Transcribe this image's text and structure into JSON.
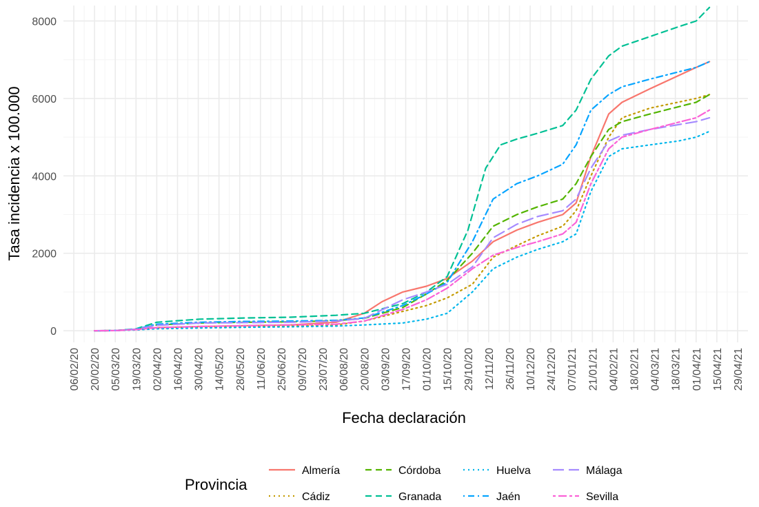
{
  "chart_data": {
    "type": "line",
    "xlabel": "Fecha declaración",
    "ylabel": "Tasa incidencia x 100.000",
    "ylim": [
      -300,
      8400
    ],
    "yticks": [
      0,
      2000,
      4000,
      6000,
      8000
    ],
    "x_range": [
      "2020-01-30",
      "2021-05-06"
    ],
    "x_ticks": [
      "2020-02-06",
      "2020-02-20",
      "2020-03-05",
      "2020-03-19",
      "2020-04-02",
      "2020-04-16",
      "2020-04-30",
      "2020-05-14",
      "2020-05-28",
      "2020-06-11",
      "2020-06-25",
      "2020-07-09",
      "2020-07-23",
      "2020-08-06",
      "2020-08-20",
      "2020-09-03",
      "2020-09-17",
      "2020-10-01",
      "2020-10-15",
      "2020-10-29",
      "2020-11-12",
      "2020-11-26",
      "2020-12-10",
      "2020-12-24",
      "2021-01-07",
      "2021-01-21",
      "2021-02-04",
      "2021-02-18",
      "2021-03-04",
      "2021-03-18",
      "2021-04-01",
      "2021-04-15",
      "2021-04-29"
    ],
    "x_tick_labels": [
      "06/02/20",
      "20/02/20",
      "05/03/20",
      "19/03/20",
      "02/04/20",
      "16/04/20",
      "30/04/20",
      "14/05/20",
      "28/05/20",
      "11/06/20",
      "25/06/20",
      "09/07/20",
      "23/07/20",
      "06/08/20",
      "20/08/20",
      "03/09/20",
      "17/09/20",
      "01/10/20",
      "15/10/20",
      "29/10/20",
      "12/11/20",
      "26/11/20",
      "10/12/20",
      "24/12/20",
      "07/01/21",
      "21/01/21",
      "04/02/21",
      "18/02/21",
      "04/03/21",
      "18/03/21",
      "01/04/21",
      "15/04/21",
      "29/04/21"
    ],
    "grid": true,
    "legend": {
      "position": "bottom",
      "title": "Provincia"
    },
    "series": [
      {
        "name": "Almería",
        "color": "#F8766D",
        "dash": "solid",
        "x": [
          "2020-02-20",
          "2020-03-05",
          "2020-03-19",
          "2020-04-02",
          "2020-05-01",
          "2020-06-01",
          "2020-07-01",
          "2020-08-01",
          "2020-08-20",
          "2020-09-01",
          "2020-09-15",
          "2020-10-01",
          "2020-10-15",
          "2020-11-01",
          "2020-11-15",
          "2020-12-01",
          "2020-12-15",
          "2021-01-01",
          "2021-01-10",
          "2021-01-20",
          "2021-02-01",
          "2021-02-10",
          "2021-03-01",
          "2021-04-01",
          "2021-04-10"
        ],
        "y": [
          0,
          5,
          40,
          80,
          110,
          130,
          150,
          220,
          450,
          750,
          1000,
          1150,
          1350,
          1800,
          2300,
          2600,
          2800,
          3000,
          3300,
          4500,
          5600,
          5900,
          6250,
          6800,
          6950
        ]
      },
      {
        "name": "Cádiz",
        "color": "#C49A00",
        "dash": "dotted",
        "x": [
          "2020-02-20",
          "2020-03-05",
          "2020-03-19",
          "2020-04-02",
          "2020-05-01",
          "2020-06-01",
          "2020-07-01",
          "2020-08-01",
          "2020-08-20",
          "2020-09-15",
          "2020-10-01",
          "2020-10-15",
          "2020-11-01",
          "2020-11-15",
          "2020-12-01",
          "2020-12-15",
          "2021-01-01",
          "2021-01-10",
          "2021-01-20",
          "2021-02-01",
          "2021-02-10",
          "2021-03-01",
          "2021-04-01",
          "2021-04-10"
        ],
        "y": [
          0,
          5,
          30,
          60,
          80,
          100,
          120,
          150,
          250,
          500,
          650,
          850,
          1200,
          1900,
          2200,
          2450,
          2700,
          3100,
          4000,
          5000,
          5500,
          5750,
          6000,
          6100
        ]
      },
      {
        "name": "Córdoba",
        "color": "#53B400",
        "dash": "dashed",
        "x": [
          "2020-02-20",
          "2020-03-05",
          "2020-03-19",
          "2020-04-02",
          "2020-05-01",
          "2020-06-01",
          "2020-07-01",
          "2020-08-01",
          "2020-08-20",
          "2020-09-15",
          "2020-10-01",
          "2020-10-15",
          "2020-11-01",
          "2020-11-15",
          "2020-12-01",
          "2020-12-15",
          "2021-01-01",
          "2021-01-10",
          "2021-01-20",
          "2021-02-01",
          "2021-02-10",
          "2021-03-01",
          "2021-04-01",
          "2021-04-10"
        ],
        "y": [
          0,
          5,
          40,
          150,
          200,
          220,
          230,
          260,
          320,
          600,
          950,
          1300,
          2000,
          2700,
          3000,
          3200,
          3400,
          3800,
          4500,
          5200,
          5400,
          5600,
          5900,
          6100
        ]
      },
      {
        "name": "Granada",
        "color": "#00C094",
        "dash": "dashed",
        "x": [
          "2020-02-20",
          "2020-03-05",
          "2020-03-19",
          "2020-04-02",
          "2020-05-01",
          "2020-06-01",
          "2020-07-01",
          "2020-08-01",
          "2020-08-20",
          "2020-09-15",
          "2020-10-01",
          "2020-10-15",
          "2020-10-29",
          "2020-11-10",
          "2020-11-20",
          "2020-12-01",
          "2020-12-15",
          "2021-01-01",
          "2021-01-10",
          "2021-01-20",
          "2021-02-01",
          "2021-02-10",
          "2021-03-01",
          "2021-03-20",
          "2021-04-01",
          "2021-04-10"
        ],
        "y": [
          0,
          5,
          50,
          220,
          300,
          330,
          350,
          400,
          450,
          700,
          1000,
          1400,
          2600,
          4200,
          4800,
          4950,
          5100,
          5300,
          5700,
          6500,
          7100,
          7350,
          7600,
          7850,
          8000,
          8350
        ]
      },
      {
        "name": "Huelva",
        "color": "#00B6EB",
        "dash": "dotted",
        "x": [
          "2020-02-20",
          "2020-03-05",
          "2020-03-19",
          "2020-04-02",
          "2020-05-01",
          "2020-06-01",
          "2020-07-01",
          "2020-08-01",
          "2020-08-20",
          "2020-09-15",
          "2020-10-01",
          "2020-10-15",
          "2020-11-01",
          "2020-11-15",
          "2020-12-01",
          "2020-12-15",
          "2021-01-01",
          "2021-01-10",
          "2021-01-20",
          "2021-02-01",
          "2021-02-10",
          "2021-03-01",
          "2021-03-20",
          "2021-04-01",
          "2021-04-10"
        ],
        "y": [
          0,
          5,
          20,
          50,
          70,
          90,
          100,
          120,
          150,
          200,
          300,
          450,
          1000,
          1600,
          1900,
          2100,
          2300,
          2500,
          3600,
          4500,
          4700,
          4800,
          4900,
          5000,
          5150
        ]
      },
      {
        "name": "Jaén",
        "color": "#06A4FF",
        "dash": "dashdot",
        "x": [
          "2020-02-20",
          "2020-03-05",
          "2020-03-19",
          "2020-04-02",
          "2020-05-01",
          "2020-06-01",
          "2020-07-01",
          "2020-08-01",
          "2020-08-20",
          "2020-09-15",
          "2020-10-01",
          "2020-10-15",
          "2020-11-01",
          "2020-11-15",
          "2020-12-01",
          "2020-12-15",
          "2021-01-01",
          "2021-01-10",
          "2021-01-20",
          "2021-02-01",
          "2021-02-10",
          "2021-03-01",
          "2021-04-01",
          "2021-04-10"
        ],
        "y": [
          0,
          5,
          40,
          170,
          220,
          240,
          250,
          270,
          330,
          650,
          950,
          1250,
          2300,
          3400,
          3800,
          4000,
          4300,
          4800,
          5700,
          6100,
          6300,
          6500,
          6800,
          6950
        ]
      },
      {
        "name": "Málaga",
        "color": "#A58AFF",
        "dash": "longdash",
        "x": [
          "2020-02-20",
          "2020-03-05",
          "2020-03-19",
          "2020-04-02",
          "2020-05-01",
          "2020-06-01",
          "2020-07-01",
          "2020-08-01",
          "2020-08-20",
          "2020-09-15",
          "2020-10-01",
          "2020-10-15",
          "2020-11-01",
          "2020-11-15",
          "2020-12-01",
          "2020-12-15",
          "2021-01-01",
          "2021-01-10",
          "2021-01-20",
          "2021-02-01",
          "2021-02-10",
          "2021-03-01",
          "2021-04-01",
          "2021-04-10"
        ],
        "y": [
          0,
          5,
          40,
          140,
          200,
          210,
          220,
          250,
          320,
          800,
          1000,
          1200,
          1650,
          2400,
          2750,
          2950,
          3100,
          3400,
          4200,
          4900,
          5050,
          5200,
          5400,
          5500
        ]
      },
      {
        "name": "Sevilla",
        "color": "#FB61D7",
        "dash": "twodash",
        "x": [
          "2020-02-20",
          "2020-03-05",
          "2020-03-19",
          "2020-04-02",
          "2020-05-01",
          "2020-06-01",
          "2020-07-01",
          "2020-08-01",
          "2020-08-20",
          "2020-09-15",
          "2020-10-01",
          "2020-10-15",
          "2020-11-01",
          "2020-11-15",
          "2020-12-01",
          "2020-12-15",
          "2021-01-01",
          "2021-01-10",
          "2021-01-20",
          "2021-02-01",
          "2021-02-10",
          "2021-03-01",
          "2021-04-01",
          "2021-04-10"
        ],
        "y": [
          0,
          5,
          30,
          80,
          110,
          130,
          150,
          170,
          250,
          550,
          800,
          1100,
          1600,
          1950,
          2150,
          2300,
          2500,
          2800,
          3800,
          4700,
          5000,
          5200,
          5500,
          5700
        ]
      }
    ]
  }
}
